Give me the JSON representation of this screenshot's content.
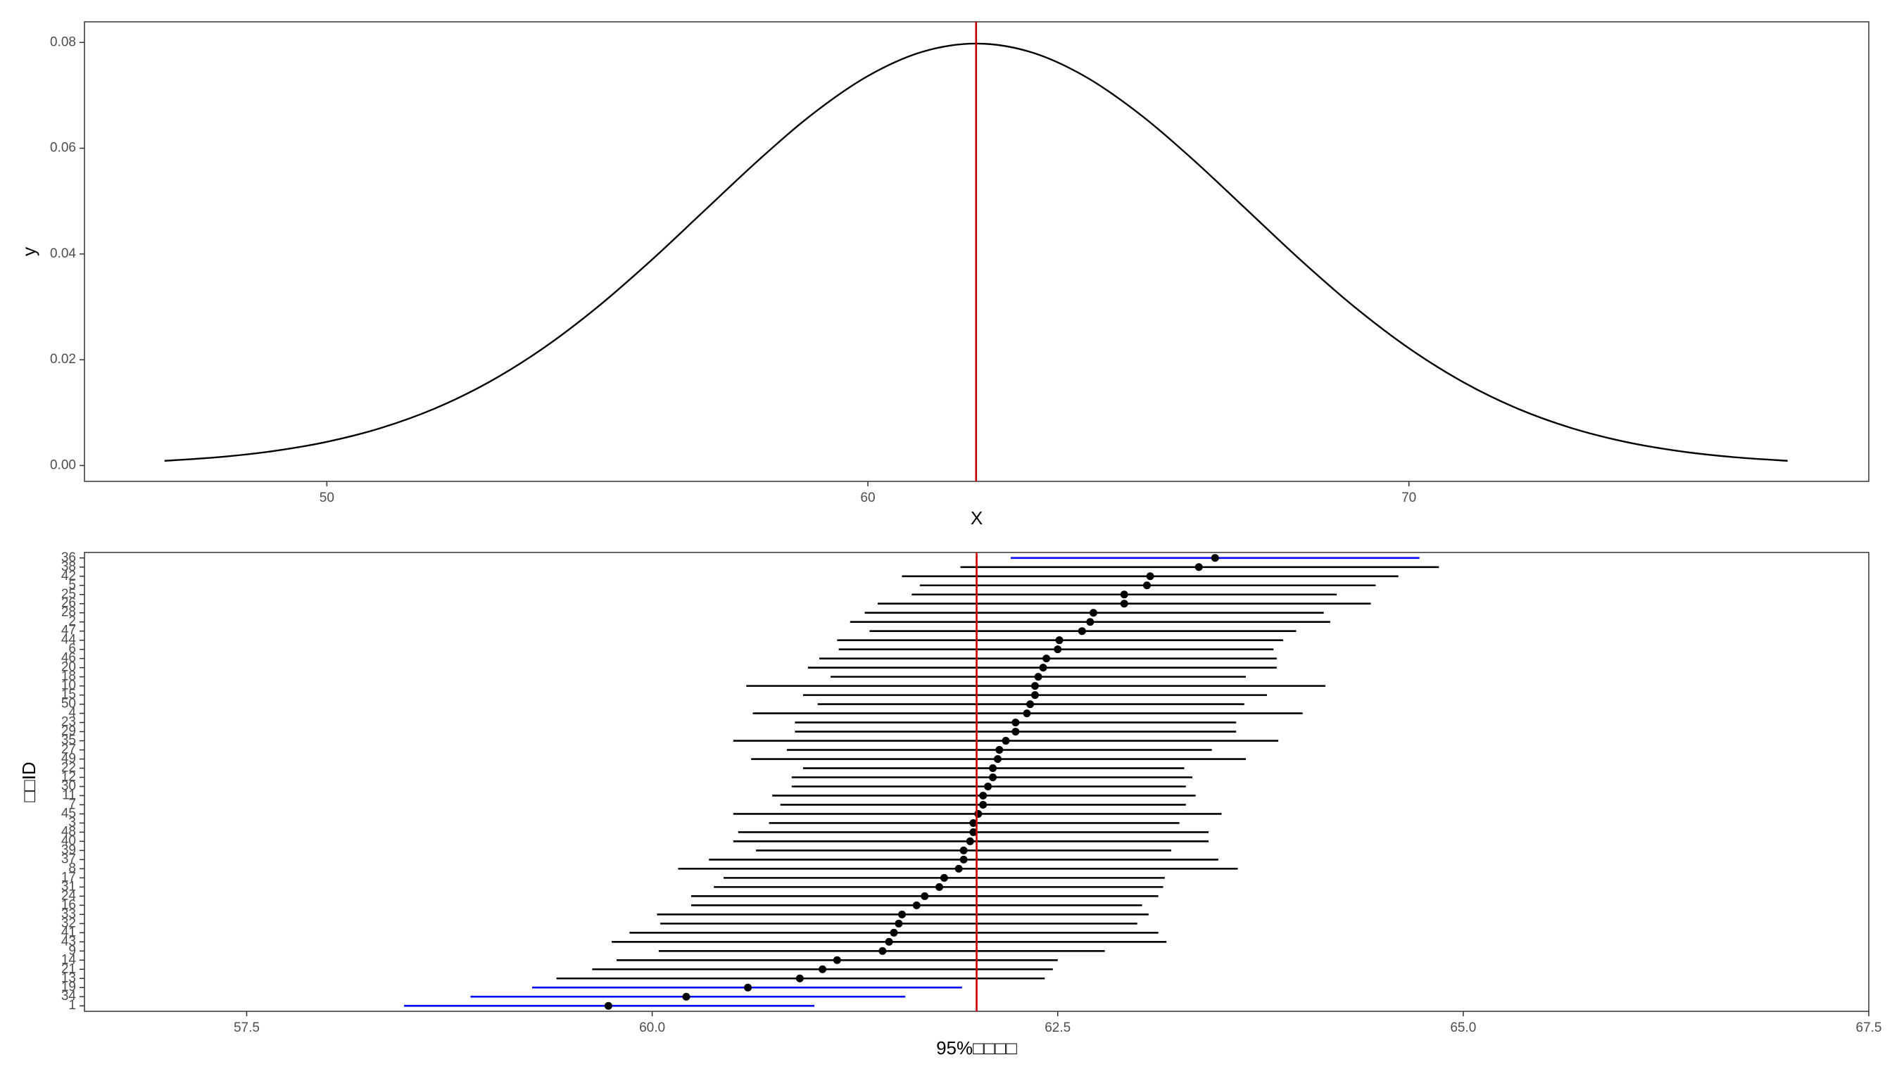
{
  "chart_data": [
    {
      "type": "line",
      "x": [
        47,
        48,
        49,
        50,
        51,
        52,
        53,
        54,
        55,
        56,
        57,
        58,
        59,
        60,
        61,
        62,
        63,
        64,
        65,
        66,
        67,
        68,
        69,
        70,
        71,
        72,
        73,
        74,
        75,
        76,
        77
      ],
      "values": [
        0.000887,
        0.001583,
        0.002717,
        0.004479,
        0.007095,
        0.010798,
        0.01579,
        0.022184,
        0.029945,
        0.038837,
        0.048394,
        0.057938,
        0.066645,
        0.073654,
        0.078209,
        0.079788,
        0.078209,
        0.073654,
        0.066645,
        0.057938,
        0.048394,
        0.038837,
        0.029945,
        0.022184,
        0.01579,
        0.010798,
        0.007095,
        0.004479,
        0.002717,
        0.001583,
        0.000887
      ],
      "color": "#000000",
      "vline": 62,
      "vline_color": "#cc0000",
      "xlim": [
        45.52,
        78.5
      ],
      "xticks": [
        50,
        60,
        70
      ],
      "ylim": [
        -0.003,
        0.0839
      ],
      "yticks": [
        {
          "value": 0,
          "label": "0.00"
        },
        0.02,
        0.04,
        0.06,
        0.08
      ],
      "xlabel": "X",
      "ylabel": "y"
    },
    {
      "type": "interval",
      "categories": [
        "1",
        "34",
        "19",
        "13",
        "21",
        "14",
        "9",
        "43",
        "41",
        "32",
        "33",
        "16",
        "24",
        "31",
        "17",
        "8",
        "37",
        "39",
        "40",
        "48",
        "3",
        "45",
        "7",
        "11",
        "30",
        "12",
        "22",
        "49",
        "27",
        "35",
        "29",
        "23",
        "4",
        "50",
        "15",
        "10",
        "18",
        "20",
        "46",
        "6",
        "44",
        "47",
        "2",
        "28",
        "26",
        "25",
        "5",
        "42",
        "38",
        "36"
      ],
      "values": [
        59.73,
        60.21,
        60.59,
        60.91,
        61.05,
        61.14,
        61.42,
        61.46,
        61.49,
        61.52,
        61.54,
        61.63,
        61.68,
        61.77,
        61.8,
        61.89,
        61.92,
        61.92,
        61.96,
        61.98,
        61.98,
        62.01,
        62.04,
        62.04,
        62.07,
        62.1,
        62.1,
        62.13,
        62.14,
        62.18,
        62.24,
        62.24,
        62.31,
        62.33,
        62.36,
        62.36,
        62.38,
        62.41,
        62.43,
        62.5,
        62.51,
        62.65,
        62.7,
        62.72,
        62.91,
        62.91,
        63.05,
        63.07,
        63.37,
        63.47
      ],
      "lower": [
        58.47,
        58.88,
        59.26,
        59.41,
        59.63,
        59.78,
        60.04,
        59.75,
        59.86,
        60.05,
        60.03,
        60.24,
        60.24,
        60.38,
        60.44,
        60.16,
        60.35,
        60.64,
        60.5,
        60.53,
        60.72,
        60.5,
        60.79,
        60.74,
        60.86,
        60.86,
        60.93,
        60.61,
        60.83,
        60.5,
        60.88,
        60.88,
        60.62,
        61.02,
        60.93,
        60.58,
        61.1,
        60.96,
        61.03,
        61.15,
        61.14,
        61.34,
        61.22,
        61.31,
        61.39,
        61.6,
        61.65,
        61.54,
        61.9,
        62.21
      ],
      "upper": [
        61.0,
        61.56,
        61.91,
        62.42,
        62.47,
        62.5,
        62.79,
        63.17,
        63.12,
        62.99,
        63.06,
        63.02,
        63.12,
        63.15,
        63.16,
        63.61,
        63.49,
        63.2,
        63.43,
        63.43,
        63.25,
        63.51,
        63.29,
        63.35,
        63.29,
        63.33,
        63.28,
        63.66,
        63.45,
        63.86,
        63.6,
        63.6,
        64.01,
        63.65,
        63.79,
        64.15,
        63.66,
        63.85,
        63.85,
        63.83,
        63.89,
        63.97,
        64.18,
        64.14,
        64.43,
        64.22,
        64.46,
        64.6,
        64.85,
        64.73
      ],
      "color": "#000000",
      "miss_color": "#0000ff",
      "vline": 62,
      "vline_color": "#cc0000",
      "xlim": [
        56.5,
        67.5
      ],
      "xticks": [
        57.5,
        {
          "value": 60,
          "label": "60.0"
        },
        62.5,
        {
          "value": 65,
          "label": "65.0"
        },
        67.5
      ],
      "xlabel": "95%□□□□",
      "ylabel": "□□ID"
    }
  ]
}
